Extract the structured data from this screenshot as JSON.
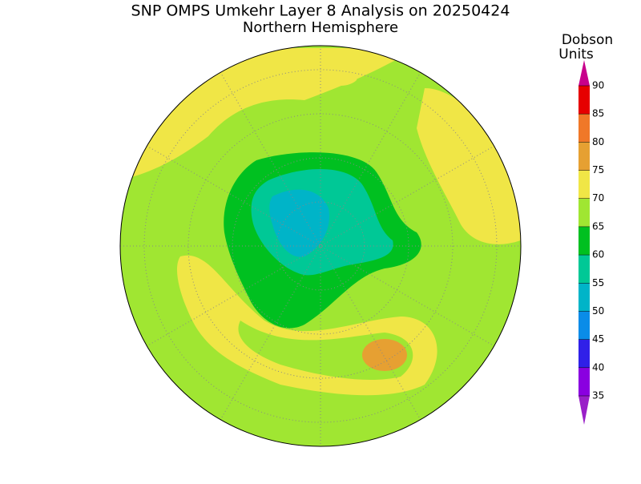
{
  "title": "SNP OMPS Umkehr Layer 8 Analysis on 20250424",
  "subtitle": "Northern Hemisphere",
  "colorbar": {
    "label": [
      "Dobson",
      "Units"
    ],
    "lim": [
      35,
      90
    ],
    "ticks": [
      35,
      40,
      45,
      50,
      55,
      60,
      65,
      70,
      75,
      80,
      85,
      90
    ],
    "colors": [
      "#8a00e0",
      "#3020e8",
      "#0a8ce8",
      "#00b4c8",
      "#00c896",
      "#00c020",
      "#a0e632",
      "#f0e646",
      "#e6a032",
      "#f07828",
      "#e60000"
    ],
    "under_color": "#9a20c8",
    "over_color": "#c8008c"
  }
}
